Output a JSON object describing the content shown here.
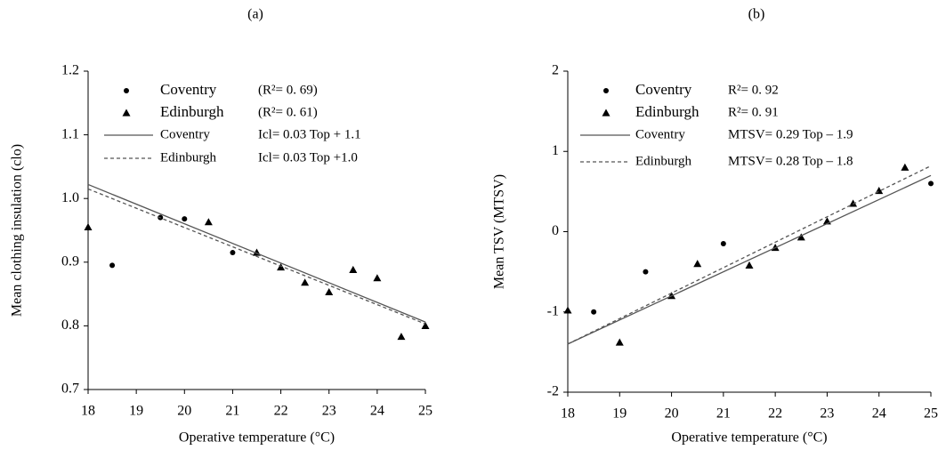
{
  "chart_data": [
    {
      "type": "scatter",
      "title": "(a)",
      "x_label": "Operative temperature (°C)",
      "y_label": "Mean clothing insulation (clo)",
      "xlim": [
        18,
        25
      ],
      "xticks": [
        18,
        19,
        20,
        21,
        22,
        23,
        24,
        25
      ],
      "ylim": [
        0.7,
        1.2
      ],
      "yticks": [
        0.7,
        0.8,
        0.9,
        {
          "value": 1,
          "label": "1.0"
        },
        1.1,
        1.2
      ],
      "series": [
        {
          "name": "Coventry",
          "legend_text": "(R²= 0. 69)",
          "marker": "circle",
          "color": "#000000",
          "x": [
            18.5,
            19.5,
            20,
            21
          ],
          "values": [
            0.895,
            0.97,
            0.968,
            0.915
          ]
        },
        {
          "name": "Edinburgh",
          "legend_text": "(R²= 0. 61)",
          "marker": "triangle",
          "color": "#000000",
          "x": [
            18,
            20.5,
            21.5,
            22,
            22.5,
            23,
            23.5,
            24,
            24.5,
            25
          ],
          "values": [
            0.955,
            0.963,
            0.915,
            0.892,
            0.868,
            0.853,
            0.888,
            0.875,
            0.783,
            0.8
          ]
        },
        {
          "name": "Coventry",
          "legend_text": "Icl= 0.03 Top + 1.1",
          "line": "solid",
          "color": "#555555",
          "x": [
            18,
            25
          ],
          "values": [
            1.022,
            0.806
          ]
        },
        {
          "name": "Edinburgh",
          "legend_text": "Icl= 0.03 Top +1.0",
          "line": "dashed",
          "color": "#555555",
          "x": [
            18,
            25
          ],
          "values": [
            1.015,
            0.803
          ]
        }
      ]
    },
    {
      "type": "scatter",
      "title": "(b)",
      "x_label": "Operative temperature (°C)",
      "y_label": "Mean TSV (MTSV)",
      "xlim": [
        18,
        25
      ],
      "xticks": [
        18,
        19,
        20,
        21,
        22,
        23,
        24,
        25
      ],
      "ylim": [
        -2,
        2
      ],
      "yticks": [
        -2,
        -1,
        0,
        1,
        2
      ],
      "series": [
        {
          "name": "Coventry",
          "legend_text": "R²= 0. 92",
          "marker": "circle",
          "color": "#000000",
          "x": [
            18.5,
            19.5,
            21,
            25
          ],
          "values": [
            -1.0,
            -0.5,
            -0.15,
            0.6
          ]
        },
        {
          "name": "Edinburgh",
          "legend_text": "R²= 0. 91",
          "marker": "triangle",
          "color": "#000000",
          "x": [
            18,
            19,
            20,
            20.5,
            21.5,
            22,
            22.5,
            23,
            23.5,
            24,
            24.5
          ],
          "values": [
            -0.98,
            -1.38,
            -0.8,
            -0.4,
            -0.42,
            -0.2,
            -0.07,
            0.13,
            0.35,
            0.51,
            0.8
          ]
        },
        {
          "name": "Coventry",
          "legend_text": "MTSV= 0.29 Top – 1.9",
          "line": "solid",
          "color": "#555555",
          "x": [
            18,
            25
          ],
          "values": [
            -1.4,
            0.7
          ]
        },
        {
          "name": "Edinburgh",
          "legend_text": "MTSV= 0.28 Top – 1.8",
          "line": "dashed",
          "color": "#555555",
          "x": [
            18,
            25
          ],
          "values": [
            -1.4,
            0.82
          ]
        }
      ]
    }
  ]
}
